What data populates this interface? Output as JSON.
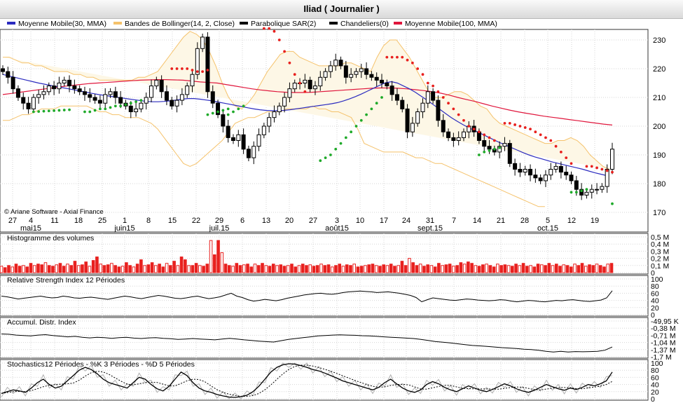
{
  "title": "Iliad  ( Journalier )",
  "copyright": "© Ariane Software - Axial Finance",
  "legend": [
    {
      "label": "Moyenne Mobile(30, MMA)",
      "color": "#2b2bbf"
    },
    {
      "label": "Bandes de Bollinger(14, 2, Close)",
      "color": "#f5c26b"
    },
    {
      "label": "Parabolique SAR(2)",
      "color": "#000000"
    },
    {
      "label": "Chandeliers(0)",
      "color": "#000000"
    },
    {
      "label": "Moyenne Mobile(100, MMA)",
      "color": "#e0163c"
    }
  ],
  "colors": {
    "up": "#ffffff",
    "down": "#000000",
    "sar_up": "#1faa2a",
    "sar_down": "#e8201e",
    "ma30": "#2b2bbf",
    "ma100": "#e0163c",
    "band": "#f5c26b",
    "band_fill": "#fdf7e6",
    "volume": "#e8201e"
  },
  "x_axis": {
    "day_ticks": [
      "27",
      "4",
      "11",
      "18",
      "25",
      "1",
      "8",
      "15",
      "22",
      "29",
      "6",
      "13",
      "20",
      "27",
      "3",
      "10",
      "17",
      "24",
      "31",
      "7",
      "14",
      "21",
      "28",
      "5",
      "12",
      "19"
    ],
    "month_labels": [
      "mai15",
      "juin15",
      "juil.15",
      "août15",
      "sept.15",
      "oct.15"
    ]
  },
  "chart_data": [
    {
      "type": "candlestick",
      "name": "Iliad price",
      "ylim": [
        168,
        234
      ],
      "y_ticks": [
        170,
        180,
        190,
        200,
        210,
        220,
        230
      ],
      "grid": true,
      "closes": [
        219,
        217,
        213,
        210,
        208,
        206,
        210,
        211,
        212,
        214,
        213,
        215,
        216,
        214,
        213,
        212,
        211,
        210,
        209,
        208,
        211,
        212,
        210,
        208,
        207,
        205,
        206,
        208,
        210,
        214,
        216,
        212,
        209,
        207,
        209,
        211,
        214,
        218,
        227,
        231,
        212,
        208,
        204,
        200,
        196,
        195,
        197,
        192,
        189,
        193,
        197,
        200,
        203,
        205,
        207,
        210,
        213,
        215,
        215,
        216,
        213,
        214,
        217,
        219,
        221,
        223,
        221,
        217,
        218,
        219,
        220,
        218,
        217,
        216,
        215,
        214,
        211,
        209,
        206,
        198,
        201,
        205,
        208,
        212,
        209,
        202,
        198,
        196,
        195,
        196,
        198,
        200,
        198,
        195,
        193,
        192,
        191,
        193,
        194,
        187,
        185,
        184,
        185,
        183,
        182,
        181,
        183,
        185,
        186,
        184,
        183,
        181,
        178,
        176,
        177,
        178,
        178,
        179,
        185,
        192
      ],
      "ma30": [
        218,
        217.5,
        217,
        216.5,
        216,
        215.5,
        215,
        214.6,
        214.2,
        213.8,
        213.4,
        213,
        212.6,
        212.2,
        211.8,
        211.4,
        211,
        210.7,
        210.4,
        210.1,
        209.8,
        209.5,
        209.2,
        208.9,
        208.6,
        208.5,
        208.5,
        208.6,
        208.8,
        209.1,
        209.4,
        209.6,
        209.6,
        209.4,
        209.1,
        208.8,
        208.4,
        208,
        207.6,
        207.2,
        206.8,
        206.4,
        206,
        205.7,
        205.5,
        205.4,
        205.4,
        205.5,
        205.7,
        206,
        206.3,
        206.6,
        206.9,
        207.2,
        207.5,
        207.8,
        208.2,
        208.8,
        209.5,
        210.3,
        211.2,
        212.2,
        213.2,
        214.2,
        215.1,
        215.5,
        215,
        214,
        213,
        211.8,
        210.4,
        209,
        207.5,
        206,
        204.5,
        203,
        201.7,
        200.5,
        199.4,
        198.4,
        197.4,
        196.4,
        195.4,
        194.4,
        193.5,
        192.6,
        191.7,
        190.8,
        190,
        189.3,
        188.7,
        188.1,
        187.5,
        187,
        186.5,
        186,
        185.5,
        185,
        184.4,
        183.8,
        183.3,
        182.8
      ],
      "ma100": [
        211,
        211.4,
        211.8,
        212.2,
        212.6,
        213,
        213.4,
        213.8,
        214.2,
        214.5,
        214.8,
        215,
        215.2,
        215.4,
        215.6,
        215.8,
        216,
        216.1,
        216.2,
        216.2,
        216.1,
        216,
        215.7,
        215.4,
        215.2,
        215,
        214.5,
        214,
        213.5,
        213,
        212.6,
        212.3,
        212,
        211.8,
        211.7,
        211.7,
        211.8,
        212,
        212.2,
        212.4,
        212.6,
        212.8,
        213,
        213.2,
        213.3,
        213.3,
        213.2,
        213,
        212.7,
        212.4,
        212,
        211.5,
        210.8,
        210,
        209.3,
        208.6,
        207.8,
        207,
        206.3,
        205.6,
        205,
        204.5,
        204,
        203.5,
        203.1,
        202.7,
        202.3,
        201.9,
        201.5,
        201.1,
        200.7,
        200.4
      ],
      "sar_up": [
        [
          206,
          "#g"
        ],
        [
          205,
          "#g"
        ],
        [
          205,
          "#g"
        ],
        [
          206,
          "#g"
        ],
        [
          206,
          "#g"
        ],
        [
          207,
          "#g"
        ],
        [
          207,
          "#g"
        ],
        [
          208,
          "#g"
        ],
        [
          208,
          "#g"
        ],
        [
          209,
          "#g"
        ],
        [
          209,
          "#g"
        ],
        [
          210,
          "#g"
        ]
      ],
      "bb_upper": [
        224,
        224,
        223,
        222,
        222,
        221,
        221,
        220,
        219,
        219,
        219,
        218,
        218,
        217,
        217,
        216,
        216,
        216,
        216,
        216,
        216,
        217,
        217,
        218,
        219,
        222,
        225,
        228,
        231,
        233,
        232,
        230,
        226,
        221,
        215,
        210,
        207,
        206,
        208,
        211,
        215,
        219,
        222,
        225,
        226,
        226,
        224,
        223,
        222,
        221,
        221,
        221,
        221,
        222,
        222,
        221,
        220,
        219,
        224,
        228,
        230,
        230,
        227,
        224,
        220,
        216,
        212,
        210,
        210,
        211,
        212,
        212,
        211,
        209,
        207,
        206,
        203,
        201,
        200,
        199,
        198,
        197,
        196,
        195,
        194,
        194,
        195,
        195,
        196,
        195,
        193,
        190,
        188,
        186,
        185
      ],
      "bb_lower": [
        202,
        202,
        203,
        204,
        204,
        205,
        206,
        206,
        206,
        207,
        207,
        207,
        207,
        207,
        206,
        205,
        205,
        204,
        204,
        203,
        203,
        203,
        202,
        201,
        199,
        196,
        193,
        190,
        187,
        186,
        187,
        189,
        191,
        193,
        195,
        198,
        201,
        202,
        203,
        203,
        204,
        205,
        205,
        205,
        206,
        206,
        206,
        206,
        207,
        206,
        206,
        205,
        205,
        204,
        203,
        199,
        194,
        193,
        192,
        191,
        191,
        191,
        191,
        190,
        189,
        189,
        188,
        187,
        187,
        186,
        185,
        184,
        183,
        182,
        181,
        180,
        179,
        178,
        177,
        176,
        175,
        174,
        173,
        172,
        172
      ]
    },
    {
      "type": "bar",
      "name": "Histogramme des volumes",
      "ylim": [
        0,
        0.5
      ],
      "y_ticks": [
        "0,5 M",
        "0,4 M",
        "0,3 M",
        "0,2 M",
        "0,1 M",
        "0"
      ]
    },
    {
      "type": "line",
      "name": "Relative Strength Index 12 Périodes",
      "ylim": [
        0,
        100
      ],
      "y_ticks": [
        "100",
        "80",
        "60",
        "40",
        "20",
        "0"
      ]
    },
    {
      "type": "line",
      "name": "Accumul. Distr. Index",
      "y_ticks": [
        "-49,95 K",
        "-0,38 M",
        "-0,71 M",
        "-1,04 M",
        "-1,37 M",
        "-1,7 M"
      ]
    },
    {
      "type": "line",
      "name": "Stochastics12 Périodes  -  %K 3 Périodes  -  %D 5 Périodes",
      "ylim": [
        0,
        100
      ],
      "y_ticks": [
        "100",
        "80",
        "60",
        "40",
        "20",
        "0"
      ]
    }
  ],
  "panels": {
    "volume": {
      "title": "Histogramme des volumes",
      "values": [
        0.09,
        0.07,
        0.1,
        0.08,
        0.12,
        0.09,
        0.1,
        0.08,
        0.13,
        0.1,
        0.12,
        0.11,
        0.14,
        0.1,
        0.09,
        0.11,
        0.13,
        0.09,
        0.12,
        0.1,
        0.16,
        0.1,
        0.11,
        0.15,
        0.09,
        0.17,
        0.22,
        0.12,
        0.1,
        0.11,
        0.13,
        0.1,
        0.08,
        0.09,
        0.14,
        0.1,
        0.08,
        0.12,
        0.18,
        0.1,
        0.11,
        0.14,
        0.1,
        0.12,
        0.08,
        0.13,
        0.1,
        0.16,
        0.1,
        0.22,
        0.18,
        0.1,
        0.1,
        0.13,
        0.1,
        0.09,
        0.12,
        0.45,
        0.25,
        0.45,
        0.28,
        0.12,
        0.1,
        0.09,
        0.13,
        0.1,
        0.11,
        0.12,
        0.08,
        0.12,
        0.1,
        0.13,
        0.1,
        0.09,
        0.12,
        0.1,
        0.11,
        0.09,
        0.1,
        0.12,
        0.08,
        0.1,
        0.12,
        0.1,
        0.11,
        0.09,
        0.1,
        0.12,
        0.1,
        0.11,
        0.08,
        0.1,
        0.12,
        0.09,
        0.11,
        0.1,
        0.12,
        0.08,
        0.09,
        0.1,
        0.11,
        0.12,
        0.1,
        0.09,
        0.11,
        0.1,
        0.12,
        0.09,
        0.1,
        0.16,
        0.1,
        0.2,
        0.14,
        0.1,
        0.12,
        0.09,
        0.11,
        0.1,
        0.08,
        0.13,
        0.1,
        0.11,
        0.12,
        0.09,
        0.1,
        0.14,
        0.12,
        0.15,
        0.13,
        0.1,
        0.09,
        0.11,
        0.12,
        0.1,
        0.08,
        0.12,
        0.1,
        0.11,
        0.1,
        0.09,
        0.12,
        0.1,
        0.13,
        0.09,
        0.1,
        0.08,
        0.12,
        0.11,
        0.1,
        0.13,
        0.1,
        0.12,
        0.09,
        0.11,
        0.1,
        0.08,
        0.12,
        0.1,
        0.13,
        0.09,
        0.11,
        0.1,
        0.12,
        0.1,
        0.08,
        0.12,
        0.13
      ]
    },
    "rsi": {
      "title": "Relative Strength Index 12 Périodes",
      "values": [
        52,
        50,
        47,
        44,
        46,
        48,
        50,
        52,
        49,
        47,
        48,
        52,
        50,
        47,
        46,
        48,
        49,
        47,
        45,
        43,
        46,
        49,
        52,
        50,
        47,
        45,
        48,
        51,
        54,
        52,
        49,
        46,
        45,
        47,
        50,
        52,
        48,
        45,
        47,
        50,
        55,
        60,
        52,
        48,
        42,
        38,
        40,
        43,
        41,
        39,
        42,
        46,
        49,
        52,
        55,
        57,
        59,
        60,
        58,
        57,
        59,
        62,
        64,
        65,
        66,
        65,
        64,
        62,
        63,
        64,
        62,
        60,
        57,
        54,
        48,
        36,
        42,
        47,
        45,
        43,
        41,
        40,
        42,
        44,
        43,
        41,
        40,
        39,
        40,
        42,
        41,
        38,
        36,
        38,
        40,
        39,
        37,
        36,
        38,
        40,
        39,
        41,
        42,
        40,
        38,
        37,
        39,
        41,
        47,
        67
      ]
    },
    "ad": {
      "title": "Accumul. Distr. Index",
      "values": [
        -0.65,
        -0.66,
        -0.7,
        -0.72,
        -0.74,
        -0.7,
        -0.68,
        -0.72,
        -0.75,
        -0.78,
        -0.76,
        -0.8,
        -0.83,
        -0.8,
        -0.82,
        -0.85,
        -0.82,
        -0.8,
        -0.84,
        -0.86,
        -0.83,
        -0.82,
        -0.85,
        -0.87,
        -0.9,
        -0.88,
        -0.86,
        -0.88,
        -0.9,
        -0.92,
        -0.88,
        -0.85,
        -0.88,
        -0.92,
        -0.95,
        -0.98,
        -1.0,
        -1.02,
        -0.96,
        -0.9,
        -0.86,
        -0.82,
        -0.78,
        -0.74,
        -0.72,
        -0.7,
        -0.69,
        -0.7,
        -0.71,
        -0.73,
        -0.74,
        -0.76,
        -0.78,
        -0.8,
        -0.82,
        -0.84,
        -0.86,
        -0.9,
        -0.95,
        -1.0,
        -1.03,
        -1.06,
        -1.1,
        -1.14,
        -1.18,
        -1.2,
        -1.22,
        -1.25,
        -1.28,
        -1.3,
        -1.32,
        -1.35,
        -1.37,
        -1.4,
        -1.45,
        -1.48,
        -1.45,
        -1.48,
        -1.46,
        -1.47,
        -1.46,
        -1.45,
        -1.4,
        -1.25
      ]
    },
    "stoch": {
      "title": "Stochastics12 Périodes  -  %K 3 Périodes  -  %D 5 Périodes",
      "k": [
        15,
        20,
        25,
        22,
        18,
        30,
        45,
        55,
        40,
        30,
        35,
        50,
        65,
        80,
        88,
        82,
        70,
        55,
        45,
        40,
        35,
        30,
        45,
        60,
        55,
        40,
        28,
        22,
        35,
        55,
        75,
        65,
        45,
        30,
        22,
        18,
        12,
        8,
        5,
        4,
        6,
        10,
        20,
        35,
        55,
        75,
        88,
        95,
        98,
        97,
        93,
        88,
        82,
        78,
        72,
        65,
        58,
        50,
        45,
        40,
        35,
        30,
        25,
        32,
        45,
        55,
        42,
        30,
        22,
        18,
        25,
        40,
        48,
        42,
        32,
        25,
        20,
        28,
        36,
        30,
        24,
        20,
        26,
        34,
        42,
        36,
        28,
        22,
        18,
        24,
        32,
        40,
        34,
        28,
        24,
        30,
        26,
        32,
        40,
        36,
        42,
        50,
        75
      ]
    },
    "labels": {
      "stoch_k": "%K 3 Périodes",
      "stoch_d": "%D 5 Périodes"
    }
  }
}
